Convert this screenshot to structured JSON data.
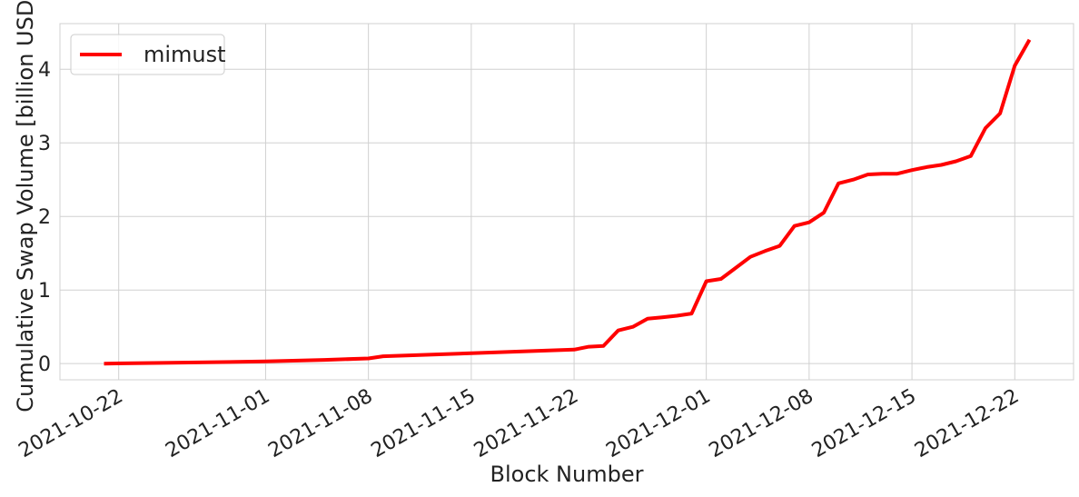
{
  "chart_data": {
    "type": "line",
    "xlabel": "Block Number",
    "ylabel": "Cumulative Swap Volume [billion USD]",
    "x": [
      "2021-10-21",
      "2021-10-25",
      "2021-11-01",
      "2021-11-05",
      "2021-11-08",
      "2021-11-09",
      "2021-11-15",
      "2021-11-22",
      "2021-11-23",
      "2021-11-24",
      "2021-11-25",
      "2021-11-26",
      "2021-11-27",
      "2021-11-28",
      "2021-11-29",
      "2021-11-30",
      "2021-12-01",
      "2021-12-02",
      "2021-12-03",
      "2021-12-04",
      "2021-12-05",
      "2021-12-06",
      "2021-12-07",
      "2021-12-08",
      "2021-12-09",
      "2021-12-10",
      "2021-12-11",
      "2021-12-12",
      "2021-12-13",
      "2021-12-14",
      "2021-12-15",
      "2021-12-16",
      "2021-12-17",
      "2021-12-18",
      "2021-12-19",
      "2021-12-20",
      "2021-12-21",
      "2021-12-22",
      "2021-12-23"
    ],
    "series": [
      {
        "name": "mimust",
        "color": "#ff0000",
        "values": [
          0,
          0.01,
          0.03,
          0.05,
          0.07,
          0.1,
          0.14,
          0.19,
          0.23,
          0.24,
          0.45,
          0.5,
          0.61,
          0.63,
          0.65,
          0.68,
          1.12,
          1.15,
          1.3,
          1.45,
          1.53,
          1.6,
          1.87,
          1.92,
          2.05,
          2.45,
          2.5,
          2.57,
          2.58,
          2.58,
          2.63,
          2.67,
          2.7,
          2.75,
          2.82,
          3.2,
          3.4,
          4.05,
          4.4
        ]
      }
    ],
    "xlim": [
      "2021-10-18",
      "2021-12-26"
    ],
    "xticks": [
      "2021-10-22",
      "2021-11-01",
      "2021-11-08",
      "2021-11-15",
      "2021-11-22",
      "2021-12-01",
      "2021-12-08",
      "2021-12-15",
      "2021-12-22"
    ],
    "ylim": [
      -0.22,
      4.62
    ],
    "yticks": [
      0,
      1,
      2,
      3,
      4
    ],
    "grid": true,
    "legend": "upper left"
  }
}
